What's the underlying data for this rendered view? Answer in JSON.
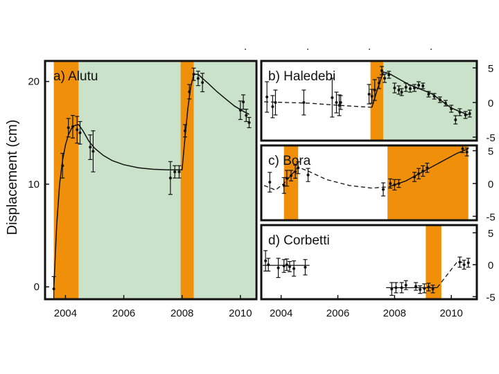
{
  "ylabel": "Displacement (cm)",
  "colors": {
    "eruption_band": "#F0900A",
    "relaxation_band": "#C9E2C9",
    "ink": "#111111"
  },
  "chart_data": [
    {
      "id": "alutu",
      "type": "scatter",
      "title": "a) Alutu",
      "xlim": [
        2003.3,
        2010.55
      ],
      "ylim": [
        -1.2,
        22
      ],
      "xticks": [
        2004,
        2006,
        2008,
        2010
      ],
      "yticks": [
        0,
        10,
        20
      ],
      "bands_orange": [
        [
          2003.6,
          2004.45
        ],
        [
          2007.95,
          2008.4
        ]
      ],
      "bands_green": [
        [
          2004.45,
          2007.95
        ],
        [
          2008.4,
          2010.5
        ]
      ],
      "points": [
        {
          "x": 2003.6,
          "y": -0.2,
          "err": 1.2
        },
        {
          "x": 2003.9,
          "y": 11.8,
          "err": 1.2
        },
        {
          "x": 2004.1,
          "y": 15.5,
          "err": 0.9
        },
        {
          "x": 2004.25,
          "y": 15.6,
          "err": 1.1
        },
        {
          "x": 2004.4,
          "y": 15.3,
          "err": 1.3
        },
        {
          "x": 2004.5,
          "y": 15.0,
          "err": 1.1
        },
        {
          "x": 2004.85,
          "y": 13.6,
          "err": 1.2
        },
        {
          "x": 2004.95,
          "y": 13.2,
          "err": 2.0
        },
        {
          "x": 2007.6,
          "y": 10.6,
          "err": 1.6
        },
        {
          "x": 2007.75,
          "y": 11.2,
          "err": 0.6
        },
        {
          "x": 2007.9,
          "y": 11.2,
          "err": 0.6
        },
        {
          "x": 2008.1,
          "y": 15.2,
          "err": 0.6
        },
        {
          "x": 2008.25,
          "y": 19.0,
          "err": 0.7
        },
        {
          "x": 2008.4,
          "y": 20.7,
          "err": 0.6
        },
        {
          "x": 2008.55,
          "y": 20.3,
          "err": 0.7
        },
        {
          "x": 2008.7,
          "y": 19.9,
          "err": 0.9
        },
        {
          "x": 2010.0,
          "y": 17.2,
          "err": 0.9
        },
        {
          "x": 2010.1,
          "y": 18.0,
          "err": 0.7
        },
        {
          "x": 2010.2,
          "y": 16.7,
          "err": 0.6
        },
        {
          "x": 2010.3,
          "y": 16.0,
          "err": 0.5
        }
      ],
      "fit_line": [
        [
          2003.6,
          -0.2
        ],
        [
          2003.7,
          6.0
        ],
        [
          2003.8,
          10.0
        ],
        [
          2003.9,
          12.3
        ],
        [
          2004.0,
          13.8
        ],
        [
          2004.1,
          14.8
        ],
        [
          2004.2,
          15.4
        ],
        [
          2004.3,
          15.7
        ],
        [
          2004.45,
          15.8
        ],
        [
          2004.6,
          15.2
        ],
        [
          2004.8,
          14.2
        ],
        [
          2005.0,
          13.5
        ],
        [
          2005.3,
          12.8
        ],
        [
          2005.6,
          12.3
        ],
        [
          2006.0,
          11.9
        ],
        [
          2006.5,
          11.6
        ],
        [
          2007.0,
          11.45
        ],
        [
          2007.5,
          11.4
        ],
        [
          2008.0,
          11.4
        ],
        [
          2008.1,
          14.5
        ],
        [
          2008.2,
          17.4
        ],
        [
          2008.3,
          19.5
        ],
        [
          2008.4,
          20.7
        ],
        [
          2008.55,
          20.7
        ],
        [
          2008.7,
          20.3
        ],
        [
          2008.9,
          19.8
        ],
        [
          2009.2,
          19.0
        ],
        [
          2009.5,
          18.3
        ],
        [
          2009.8,
          17.6
        ],
        [
          2010.1,
          17.1
        ],
        [
          2010.3,
          16.8
        ]
      ],
      "fit_style": "solid"
    },
    {
      "id": "haledebi",
      "type": "scatter",
      "title": "b) Haledebi",
      "xlim": [
        2003.3,
        2010.9
      ],
      "ylim": [
        -5.5,
        6
      ],
      "xticks": [],
      "yticks": [
        -5,
        0,
        5
      ],
      "bands_orange": [
        [
          2007.15,
          2007.6
        ]
      ],
      "bands_green": [
        [
          2007.6,
          2010.9
        ]
      ],
      "points": [
        {
          "x": 2003.5,
          "y": 0.8,
          "err": 2.2
        },
        {
          "x": 2003.7,
          "y": -0.6,
          "err": 1.6
        },
        {
          "x": 2003.8,
          "y": 0.0,
          "err": 1.8
        },
        {
          "x": 2004.8,
          "y": 0.0,
          "err": 1.8
        },
        {
          "x": 2005.8,
          "y": 0.7,
          "err": 2.8
        },
        {
          "x": 2005.95,
          "y": 0.0,
          "err": 1.5
        },
        {
          "x": 2006.05,
          "y": -0.4,
          "err": 1.5
        },
        {
          "x": 2006.1,
          "y": 0.0,
          "err": 1.0
        },
        {
          "x": 2007.1,
          "y": 1.2,
          "err": 1.4
        },
        {
          "x": 2007.2,
          "y": 0.9,
          "err": 1.0
        },
        {
          "x": 2007.3,
          "y": 1.8,
          "err": 1.5
        },
        {
          "x": 2007.45,
          "y": 2.8,
          "err": 0.8
        },
        {
          "x": 2007.55,
          "y": 4.6,
          "err": 0.6
        },
        {
          "x": 2007.65,
          "y": 3.5,
          "err": 0.6
        },
        {
          "x": 2007.8,
          "y": 4.0,
          "err": 0.5
        },
        {
          "x": 2008.0,
          "y": 2.1,
          "err": 0.7
        },
        {
          "x": 2008.15,
          "y": 1.8,
          "err": 0.6
        },
        {
          "x": 2008.25,
          "y": 1.5,
          "err": 0.5
        },
        {
          "x": 2008.4,
          "y": 2.2,
          "err": 0.6
        },
        {
          "x": 2008.55,
          "y": 2.0,
          "err": 0.5
        },
        {
          "x": 2008.7,
          "y": 2.1,
          "err": 0.5
        },
        {
          "x": 2008.85,
          "y": 2.5,
          "err": 0.5
        },
        {
          "x": 2009.0,
          "y": 2.4,
          "err": 0.4
        },
        {
          "x": 2009.2,
          "y": 1.2,
          "err": 0.4
        },
        {
          "x": 2009.4,
          "y": 0.9,
          "err": 0.4
        },
        {
          "x": 2009.6,
          "y": 0.4,
          "err": 0.4
        },
        {
          "x": 2009.8,
          "y": -0.1,
          "err": 0.4
        },
        {
          "x": 2010.0,
          "y": -0.9,
          "err": 0.5
        },
        {
          "x": 2010.15,
          "y": -2.5,
          "err": 0.6
        },
        {
          "x": 2010.3,
          "y": -1.4,
          "err": 0.5
        },
        {
          "x": 2010.5,
          "y": -1.8,
          "err": 0.5
        },
        {
          "x": 2010.65,
          "y": -1.6,
          "err": 0.5
        }
      ],
      "dashed_line": [
        [
          2003.4,
          0.1
        ],
        [
          2005.0,
          -0.1
        ],
        [
          2006.0,
          -0.4
        ],
        [
          2007.2,
          -0.7
        ]
      ],
      "fit_line": [
        [
          2007.2,
          -0.7
        ],
        [
          2007.4,
          2.0
        ],
        [
          2007.6,
          4.4
        ],
        [
          2007.8,
          4.2
        ],
        [
          2008.5,
          2.6
        ],
        [
          2009.3,
          1.3
        ],
        [
          2010.0,
          -0.8
        ],
        [
          2010.6,
          -1.8
        ]
      ],
      "fit_style": "solid"
    },
    {
      "id": "bora",
      "type": "scatter",
      "title": "c) Bora",
      "xlim": [
        2003.3,
        2010.9
      ],
      "ylim": [
        -5.6,
        5.8
      ],
      "xticks": [],
      "yticks": [
        -5,
        0,
        5
      ],
      "bands_orange": [
        [
          2004.1,
          2004.6
        ],
        [
          2007.75,
          2010.6
        ]
      ],
      "bands_green": [],
      "points": [
        {
          "x": 2003.6,
          "y": 0.2,
          "err": 1.5
        },
        {
          "x": 2004.1,
          "y": -0.3,
          "err": 1.2
        },
        {
          "x": 2004.2,
          "y": 0.8,
          "err": 1.2
        },
        {
          "x": 2004.35,
          "y": 1.2,
          "err": 0.8
        },
        {
          "x": 2004.5,
          "y": 1.8,
          "err": 1.0
        },
        {
          "x": 2004.6,
          "y": 2.4,
          "err": 0.9
        },
        {
          "x": 2004.95,
          "y": 1.3,
          "err": 1.0
        },
        {
          "x": 2007.6,
          "y": -0.9,
          "err": 1.0
        },
        {
          "x": 2007.85,
          "y": 0.0,
          "err": 0.7
        },
        {
          "x": 2008.0,
          "y": -0.2,
          "err": 0.8
        },
        {
          "x": 2008.15,
          "y": 0.0,
          "err": 0.6
        },
        {
          "x": 2008.7,
          "y": 1.0,
          "err": 0.7
        },
        {
          "x": 2008.85,
          "y": 1.5,
          "err": 0.8
        },
        {
          "x": 2009.0,
          "y": 1.9,
          "err": 0.8
        },
        {
          "x": 2009.15,
          "y": 2.4,
          "err": 0.7
        },
        {
          "x": 2010.4,
          "y": 5.3,
          "err": 0.6
        },
        {
          "x": 2010.55,
          "y": 4.8,
          "err": 0.6
        }
      ],
      "dashed_line": [
        [
          2003.4,
          -0.3
        ],
        [
          2003.8,
          -1.0
        ],
        [
          2004.1,
          0.0
        ],
        [
          2004.6,
          2.5
        ],
        [
          2005.0,
          1.8
        ],
        [
          2005.6,
          0.6
        ],
        [
          2006.4,
          -0.3
        ],
        [
          2007.2,
          -0.7
        ],
        [
          2007.8,
          -0.5
        ]
      ],
      "fit_line": [
        [
          2007.8,
          -0.5
        ],
        [
          2008.4,
          0.4
        ],
        [
          2009.0,
          1.8
        ],
        [
          2009.6,
          3.2
        ],
        [
          2010.2,
          4.6
        ],
        [
          2010.6,
          5.3
        ]
      ],
      "fit_style": "solid"
    },
    {
      "id": "corbetti",
      "type": "scatter",
      "title": "d) Corbetti",
      "xlim": [
        2003.3,
        2010.9
      ],
      "ylim": [
        -5.4,
        6.2
      ],
      "xticks": [
        2004,
        2006,
        2008,
        2010
      ],
      "yticks": [
        -5,
        0,
        5
      ],
      "bands_orange": [
        [
          2009.1,
          2009.65
        ]
      ],
      "bands_green": [],
      "points": [
        {
          "x": 2003.45,
          "y": 0.6,
          "err": 1.6
        },
        {
          "x": 2003.55,
          "y": 0.0,
          "err": 1.0
        },
        {
          "x": 2003.9,
          "y": -0.5,
          "err": 1.5
        },
        {
          "x": 2004.1,
          "y": -0.2,
          "err": 1.0
        },
        {
          "x": 2004.2,
          "y": 0.0,
          "err": 0.9
        },
        {
          "x": 2004.3,
          "y": -0.3,
          "err": 0.8
        },
        {
          "x": 2004.45,
          "y": -0.6,
          "err": 1.2
        },
        {
          "x": 2004.85,
          "y": -0.4,
          "err": 1.2
        },
        {
          "x": 2007.9,
          "y": -3.8,
          "err": 1.0
        },
        {
          "x": 2008.05,
          "y": -3.6,
          "err": 0.8
        },
        {
          "x": 2008.25,
          "y": -3.6,
          "err": 0.8
        },
        {
          "x": 2008.4,
          "y": -3.2,
          "err": 0.7
        },
        {
          "x": 2008.75,
          "y": -3.4,
          "err": 0.6
        },
        {
          "x": 2008.9,
          "y": -3.9,
          "err": 0.6
        },
        {
          "x": 2009.05,
          "y": -3.7,
          "err": 0.7
        },
        {
          "x": 2009.2,
          "y": -3.5,
          "err": 0.6
        },
        {
          "x": 2009.35,
          "y": -3.8,
          "err": 0.6
        },
        {
          "x": 2010.3,
          "y": 0.4,
          "err": 0.8
        },
        {
          "x": 2010.45,
          "y": 0.0,
          "err": 0.7
        },
        {
          "x": 2010.6,
          "y": 0.3,
          "err": 0.7
        }
      ],
      "solid_segments": [
        [
          [
            2003.35,
            -0.1
          ],
          [
            2005.0,
            -0.1
          ]
        ],
        [
          [
            2007.7,
            -3.6
          ],
          [
            2009.5,
            -3.6
          ]
        ]
      ],
      "dashed_line": [
        [
          2009.5,
          -3.6
        ],
        [
          2010.2,
          0.4
        ],
        [
          2010.4,
          0.4
        ]
      ],
      "fit_line": [],
      "fit_style": "dashed"
    }
  ]
}
